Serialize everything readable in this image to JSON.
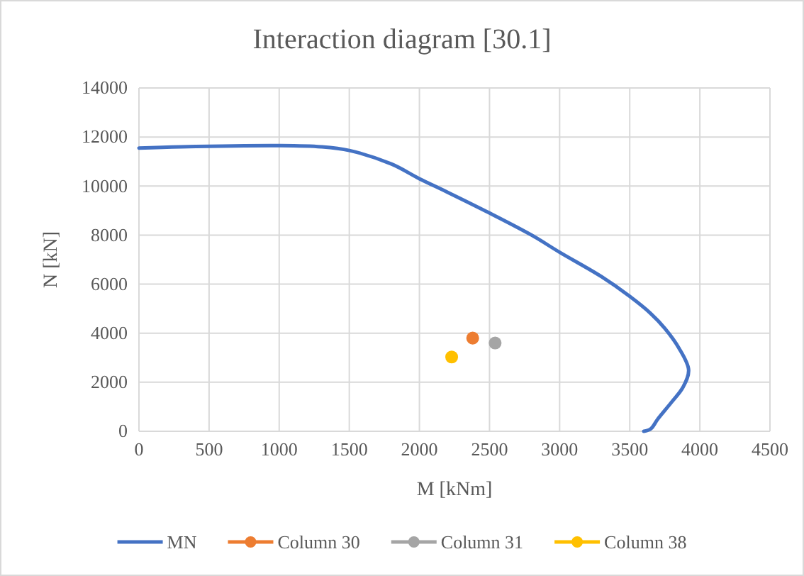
{
  "chart_data": {
    "type": "line",
    "title": "Interaction diagram [30.1]",
    "xlabel": "M [kNm]",
    "ylabel": "N [kN]",
    "xlim": [
      0,
      4500
    ],
    "xticks": [
      0,
      500,
      1000,
      1500,
      2000,
      2500,
      3000,
      3500,
      4000,
      4500
    ],
    "ylim": [
      0,
      14000
    ],
    "yticks": [
      0,
      2000,
      4000,
      6000,
      8000,
      10000,
      12000,
      14000
    ],
    "grid": true,
    "legend": "bottom",
    "marker": "none",
    "series": [
      {
        "name": "MN",
        "color": "#4472c4",
        "x": [
          0,
          300,
          1000,
          1300,
          1500,
          1800,
          2000,
          2200,
          2500,
          2800,
          3000,
          3300,
          3500,
          3650,
          3750,
          3850,
          3920,
          3880,
          3800,
          3700,
          3650,
          3600
        ],
        "values": [
          11550,
          11600,
          11650,
          11600,
          11450,
          10900,
          10300,
          9750,
          8900,
          8000,
          7300,
          6300,
          5500,
          4800,
          4200,
          3400,
          2500,
          1800,
          1200,
          500,
          100,
          0
        ]
      },
      {
        "name": "Column 30",
        "type": "scatter",
        "marker": "circle",
        "color": "#ed7d31",
        "x": [
          2380
        ],
        "values": [
          3800
        ]
      },
      {
        "name": "Column 31",
        "type": "scatter",
        "marker": "circle",
        "color": "#a5a5a5",
        "x": [
          2540
        ],
        "values": [
          3600
        ]
      },
      {
        "name": "Column 38",
        "type": "scatter",
        "marker": "circle",
        "color": "#ffc000",
        "x": [
          2230
        ],
        "values": [
          3030
        ]
      }
    ]
  }
}
